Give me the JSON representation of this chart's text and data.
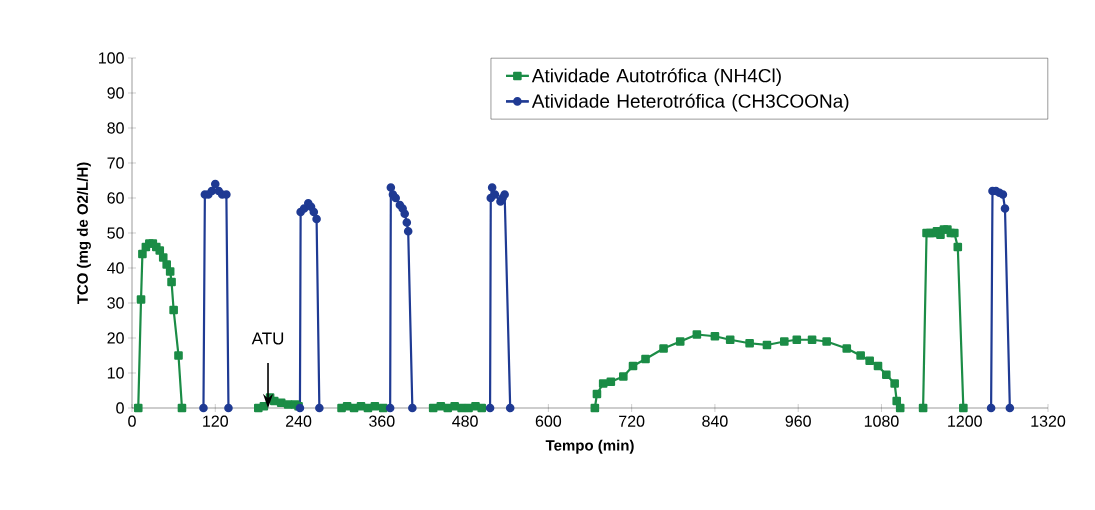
{
  "chart_data": {
    "type": "line",
    "xlabel": "Tempo (min)",
    "ylabel": "TCO (mg de O2/L/H)",
    "xlim": [
      0,
      1320
    ],
    "xticks": [
      0,
      120,
      240,
      360,
      480,
      600,
      720,
      840,
      960,
      1080,
      1200,
      1320
    ],
    "ylim": [
      0,
      100
    ],
    "yticks": [
      0,
      10,
      20,
      30,
      40,
      50,
      60,
      70,
      80,
      90,
      100
    ],
    "grid": false,
    "legend": "top right",
    "line_style": "solid",
    "annotations": [
      {
        "text": "ATU",
        "x": 196,
        "y": 0
      }
    ],
    "series": [
      {
        "name": "Atividade Autotrófica (NH4Cl)",
        "color": "#1b8c46",
        "marker": "square",
        "x": [
          9,
          13,
          15,
          20,
          25,
          30,
          35,
          40,
          45,
          50,
          55,
          57,
          60,
          67,
          72,
          130,
          182,
          190,
          199,
          205,
          215,
          225,
          235,
          240,
          270,
          302,
          310,
          320,
          330,
          340,
          350,
          362,
          400,
          434,
          445,
          455,
          465,
          475,
          485,
          495,
          504,
          600,
          667,
          670,
          679,
          690,
          708,
          722,
          740,
          766,
          790,
          814,
          840,
          862,
          890,
          915,
          940,
          958,
          980,
          1001,
          1030,
          1050,
          1063,
          1075,
          1087,
          1099,
          1102,
          1107,
          1120,
          1140,
          1145,
          1150,
          1155,
          1160,
          1165,
          1170,
          1175,
          1180,
          1185,
          1190,
          1198
        ],
        "values": [
          0,
          31,
          44,
          46,
          47,
          47,
          46,
          45,
          43,
          41,
          39,
          36,
          28,
          15,
          0,
          null,
          0,
          0.5,
          3,
          2,
          1.5,
          1,
          1,
          0.5,
          null,
          0,
          0.5,
          0,
          0.5,
          0,
          0.5,
          0,
          null,
          0,
          0.5,
          0,
          0.5,
          0,
          0,
          0.5,
          0,
          null,
          0,
          4,
          7,
          7.5,
          9,
          12,
          14,
          17,
          19,
          21,
          20.5,
          19.5,
          18.5,
          18,
          19,
          19.5,
          19.5,
          19,
          17,
          15,
          13.5,
          12,
          9.5,
          7,
          2,
          0,
          null,
          0,
          50,
          50,
          50,
          50.5,
          49.5,
          51,
          51,
          50,
          50,
          46,
          0
        ]
      },
      {
        "name": "Atividade Heterotrófica (CH3COONa)",
        "color": "#1f3a93",
        "marker": "circle",
        "x": [
          103,
          105,
          110,
          115,
          120,
          125,
          130,
          136,
          139,
          200,
          242,
          243,
          248,
          254,
          258,
          262,
          266,
          270,
          320,
          372,
          373,
          376,
          380,
          386,
          390,
          393,
          396,
          398,
          404,
          460,
          516,
          517,
          519,
          523,
          531,
          534,
          537,
          545,
          900,
          1238,
          1240,
          1245,
          1250,
          1255,
          1258,
          1265
        ],
        "values": [
          0,
          61,
          61,
          62,
          64,
          62,
          61,
          61,
          0,
          null,
          0,
          56,
          57,
          58.5,
          57.5,
          56,
          54,
          0,
          null,
          0,
          63,
          61,
          60,
          58,
          57,
          55.5,
          53,
          50.5,
          0,
          null,
          0,
          60,
          63,
          61,
          59,
          60,
          61,
          0,
          null,
          0,
          62,
          62,
          61.5,
          61,
          57,
          0
        ]
      }
    ]
  }
}
